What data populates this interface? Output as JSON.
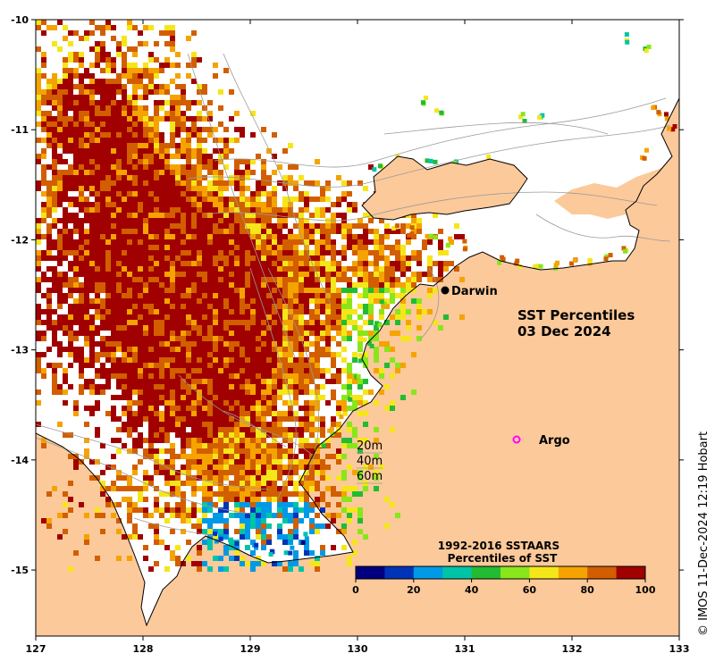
{
  "map": {
    "title_line1": "SST Percentiles",
    "title_line2": "03 Dec 2024",
    "credit": "© IMOS 11-Dec-2024 12:19 Hobart",
    "lon_range": [
      127,
      133
    ],
    "lat_range": [
      -15.6,
      -10
    ],
    "lon_ticks": [
      "127",
      "128",
      "129",
      "130",
      "131",
      "132",
      "133"
    ],
    "lat_ticks": [
      "-10",
      "-11",
      "-12",
      "-13",
      "-14",
      "-15"
    ],
    "land_color": "#fcc99a",
    "ocean_nodata_color": "#ffffff",
    "places": [
      {
        "name": "Darwin",
        "lon": 130.84,
        "lat": -12.46,
        "symbol": "black-dot"
      }
    ],
    "argo": {
      "label": "Argo",
      "lon": 131.5,
      "lat": -14.0,
      "symbol_color": "#ff00ff"
    },
    "depth_legend": [
      "20m",
      "40m",
      "60m"
    ]
  },
  "colorbar": {
    "title_line1": "1992-2016 SSTAARS",
    "title_line2": "Percentiles of SST",
    "range": [
      0,
      100
    ],
    "tick_labels": [
      "0",
      "20",
      "40",
      "60",
      "80",
      "100"
    ],
    "colors": [
      "#00007f",
      "#0033b8",
      "#0099e6",
      "#00c4a8",
      "#22bb33",
      "#88e61a",
      "#f5e61a",
      "#f5a300",
      "#d25e00",
      "#a00000"
    ]
  }
}
